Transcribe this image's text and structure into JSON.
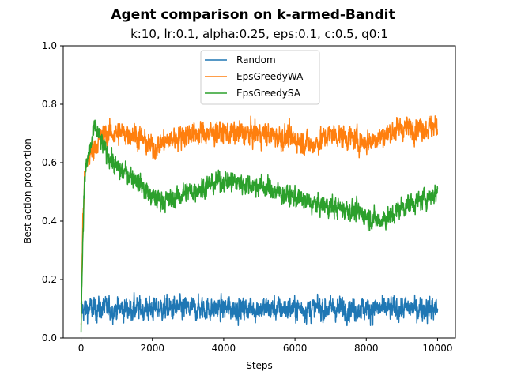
{
  "chart_data": {
    "type": "line",
    "title": "Agent comparison on k-armed-Bandit",
    "subtitle": "k:10, lr:0.1, alpha:0.25, eps:0.1, c:0.5, q0:1",
    "xlabel": "Steps",
    "ylabel": "Best action proportion",
    "xlim": [
      -500,
      10500
    ],
    "ylim": [
      0.0,
      1.0
    ],
    "xticks": [
      0,
      2000,
      4000,
      6000,
      8000,
      10000
    ],
    "yticks": [
      0.0,
      0.2,
      0.4,
      0.6,
      0.8,
      1.0
    ],
    "xtick_labels": [
      "0",
      "2000",
      "4000",
      "6000",
      "8000",
      "10000"
    ],
    "ytick_labels": [
      "0.0",
      "0.2",
      "0.4",
      "0.6",
      "0.8",
      "1.0"
    ],
    "grid": false,
    "legend": {
      "placement": "top-center"
    },
    "series": [
      {
        "name": "Random",
        "color": "#1f77b4",
        "noise": 0.045,
        "points": [
          [
            0,
            0.1
          ],
          [
            500,
            0.1
          ],
          [
            1000,
            0.1
          ],
          [
            2000,
            0.1
          ],
          [
            3000,
            0.1
          ],
          [
            4000,
            0.1
          ],
          [
            5000,
            0.1
          ],
          [
            6000,
            0.1
          ],
          [
            7000,
            0.1
          ],
          [
            8000,
            0.1
          ],
          [
            9000,
            0.1
          ],
          [
            10000,
            0.1
          ]
        ]
      },
      {
        "name": "EpsGreedyWA",
        "color": "#ff7f0e",
        "noise": 0.045,
        "points": [
          [
            0,
            0.05
          ],
          [
            50,
            0.4
          ],
          [
            100,
            0.55
          ],
          [
            200,
            0.62
          ],
          [
            400,
            0.66
          ],
          [
            700,
            0.7
          ],
          [
            1000,
            0.7
          ],
          [
            1500,
            0.7
          ],
          [
            2000,
            0.65
          ],
          [
            2500,
            0.68
          ],
          [
            3000,
            0.7
          ],
          [
            4000,
            0.7
          ],
          [
            5000,
            0.7
          ],
          [
            6000,
            0.68
          ],
          [
            6500,
            0.66
          ],
          [
            7000,
            0.7
          ],
          [
            8000,
            0.67
          ],
          [
            9000,
            0.72
          ],
          [
            10000,
            0.72
          ]
        ]
      },
      {
        "name": "EpsGreedySA",
        "color": "#2ca02c",
        "noise": 0.04,
        "points": [
          [
            0,
            0.05
          ],
          [
            50,
            0.35
          ],
          [
            100,
            0.55
          ],
          [
            200,
            0.62
          ],
          [
            400,
            0.72
          ],
          [
            600,
            0.66
          ],
          [
            1000,
            0.58
          ],
          [
            1500,
            0.55
          ],
          [
            2000,
            0.48
          ],
          [
            2500,
            0.47
          ],
          [
            3000,
            0.5
          ],
          [
            3500,
            0.52
          ],
          [
            4000,
            0.54
          ],
          [
            4500,
            0.53
          ],
          [
            5000,
            0.52
          ],
          [
            5500,
            0.5
          ],
          [
            6000,
            0.48
          ],
          [
            6500,
            0.46
          ],
          [
            7000,
            0.45
          ],
          [
            7500,
            0.44
          ],
          [
            8000,
            0.42
          ],
          [
            8300,
            0.4
          ],
          [
            8700,
            0.42
          ],
          [
            9000,
            0.45
          ],
          [
            9500,
            0.47
          ],
          [
            10000,
            0.5
          ]
        ]
      }
    ]
  }
}
